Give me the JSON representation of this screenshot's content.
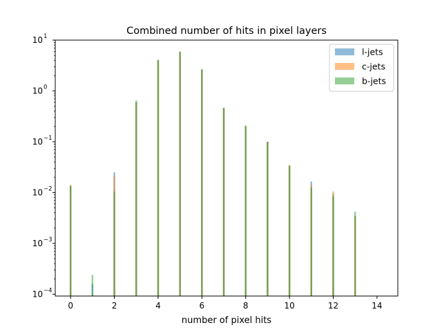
{
  "chart_data": {
    "type": "bar",
    "title": "Combined number of hits in pixel layers",
    "xlabel": "number of pixel hits",
    "ylabel": "",
    "xlim": [
      -0.7,
      14.95
    ],
    "ylim": [
      9.2e-05,
      10
    ],
    "yscale": "log",
    "grid": false,
    "legend_position": "top-right",
    "xticks": [
      0,
      2,
      4,
      6,
      8,
      10,
      12,
      14
    ],
    "yticks": [
      {
        "value": 0.0001,
        "base": "10",
        "exp": "−4"
      },
      {
        "value": 0.001,
        "base": "10",
        "exp": "−3"
      },
      {
        "value": 0.01,
        "base": "10",
        "exp": "−2"
      },
      {
        "value": 0.1,
        "base": "10",
        "exp": "−1"
      },
      {
        "value": 1,
        "base": "10",
        "exp": "0"
      },
      {
        "value": 10,
        "base": "10",
        "exp": "1"
      }
    ],
    "x": [
      0,
      1,
      2,
      3,
      4,
      5,
      6,
      7,
      8,
      9,
      10,
      11,
      12,
      13
    ],
    "series": [
      {
        "name": "l-jets",
        "color": "#1f77b4",
        "values": [
          0.0135,
          0.00016,
          0.025,
          0.6,
          4.0,
          5.8,
          2.6,
          0.46,
          0.2,
          0.1,
          0.033,
          0.0165,
          0.0095,
          0.0035
        ]
      },
      {
        "name": "c-jets",
        "color": "#ff7f0e",
        "values": [
          0.014,
          0.0001,
          0.021,
          0.6,
          4.0,
          5.9,
          2.6,
          0.45,
          0.2,
          0.1,
          0.035,
          0.014,
          0.0105,
          0.0033
        ]
      },
      {
        "name": "b-jets",
        "color": "#2ca02c",
        "values": [
          0.0137,
          0.00024,
          0.0105,
          0.65,
          4.1,
          6.0,
          2.7,
          0.47,
          0.21,
          0.1,
          0.034,
          0.0125,
          0.0085,
          0.0042
        ]
      }
    ]
  }
}
